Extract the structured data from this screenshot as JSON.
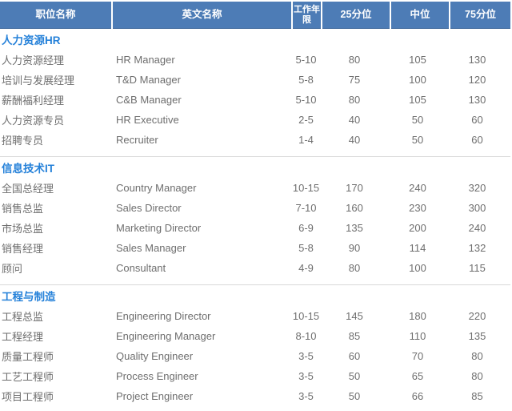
{
  "table": {
    "columns": [
      "职位名称",
      "英文名称",
      "工作年限",
      "25分位",
      "中位",
      "75分位"
    ],
    "sections": [
      {
        "title": "人力资源HR",
        "rows": [
          {
            "position_cn": "人力资源经理",
            "position_en": "HR Manager",
            "years": "5-10",
            "p25": "80",
            "median": "105",
            "p75": "130"
          },
          {
            "position_cn": "培训与发展经理",
            "position_en": "T&D Manager",
            "years": "5-8",
            "p25": "75",
            "median": "100",
            "p75": "120"
          },
          {
            "position_cn": "薪酬福利经理",
            "position_en": "C&B Manager",
            "years": "5-10",
            "p25": "80",
            "median": "105",
            "p75": "130"
          },
          {
            "position_cn": "人力资源专员",
            "position_en": "HR Executive",
            "years": "2-5",
            "p25": "40",
            "median": "50",
            "p75": "60"
          },
          {
            "position_cn": "招聘专员",
            "position_en": "Recruiter",
            "years": "1-4",
            "p25": "40",
            "median": "50",
            "p75": "60"
          }
        ]
      },
      {
        "title": "信息技术IT",
        "rows": [
          {
            "position_cn": "全国总经理",
            "position_en": "Country Manager",
            "years": "10-15",
            "p25": "170",
            "median": "240",
            "p75": "320"
          },
          {
            "position_cn": "销售总监",
            "position_en": "Sales Director",
            "years": "7-10",
            "p25": "160",
            "median": "230",
            "p75": "300"
          },
          {
            "position_cn": "市场总监",
            "position_en": "Marketing Director",
            "years": "6-9",
            "p25": "135",
            "median": "200",
            "p75": "240"
          },
          {
            "position_cn": "销售经理",
            "position_en": "Sales Manager",
            "years": "5-8",
            "p25": "90",
            "median": "114",
            "p75": "132"
          },
          {
            "position_cn": "顾问",
            "position_en": "Consultant",
            "years": "4-9",
            "p25": "80",
            "median": "100",
            "p75": "115"
          }
        ]
      },
      {
        "title": "工程与制造",
        "rows": [
          {
            "position_cn": "工程总监",
            "position_en": "Engineering Director",
            "years": "10-15",
            "p25": "145",
            "median": "180",
            "p75": "220"
          },
          {
            "position_cn": "工程经理",
            "position_en": "Engineering Manager",
            "years": "8-10",
            "p25": "85",
            "median": "110",
            "p75": "135"
          },
          {
            "position_cn": "质量工程师",
            "position_en": "Quality Engineer",
            "years": "3-5",
            "p25": "60",
            "median": "70",
            "p75": "80"
          },
          {
            "position_cn": "工艺工程师",
            "position_en": "Process Engineer",
            "years": "3-5",
            "p25": "50",
            "median": "65",
            "p75": "80"
          },
          {
            "position_cn": "项目工程师",
            "position_en": "Project Engineer",
            "years": "3-5",
            "p25": "50",
            "median": "66",
            "p75": "85"
          }
        ]
      }
    ]
  },
  "colors": {
    "header_bg": "#4d7cb6",
    "header_text": "#ffffff",
    "section_title": "#2581d9",
    "body_text": "#6e6e6e",
    "divider": "#d9d9d9"
  }
}
